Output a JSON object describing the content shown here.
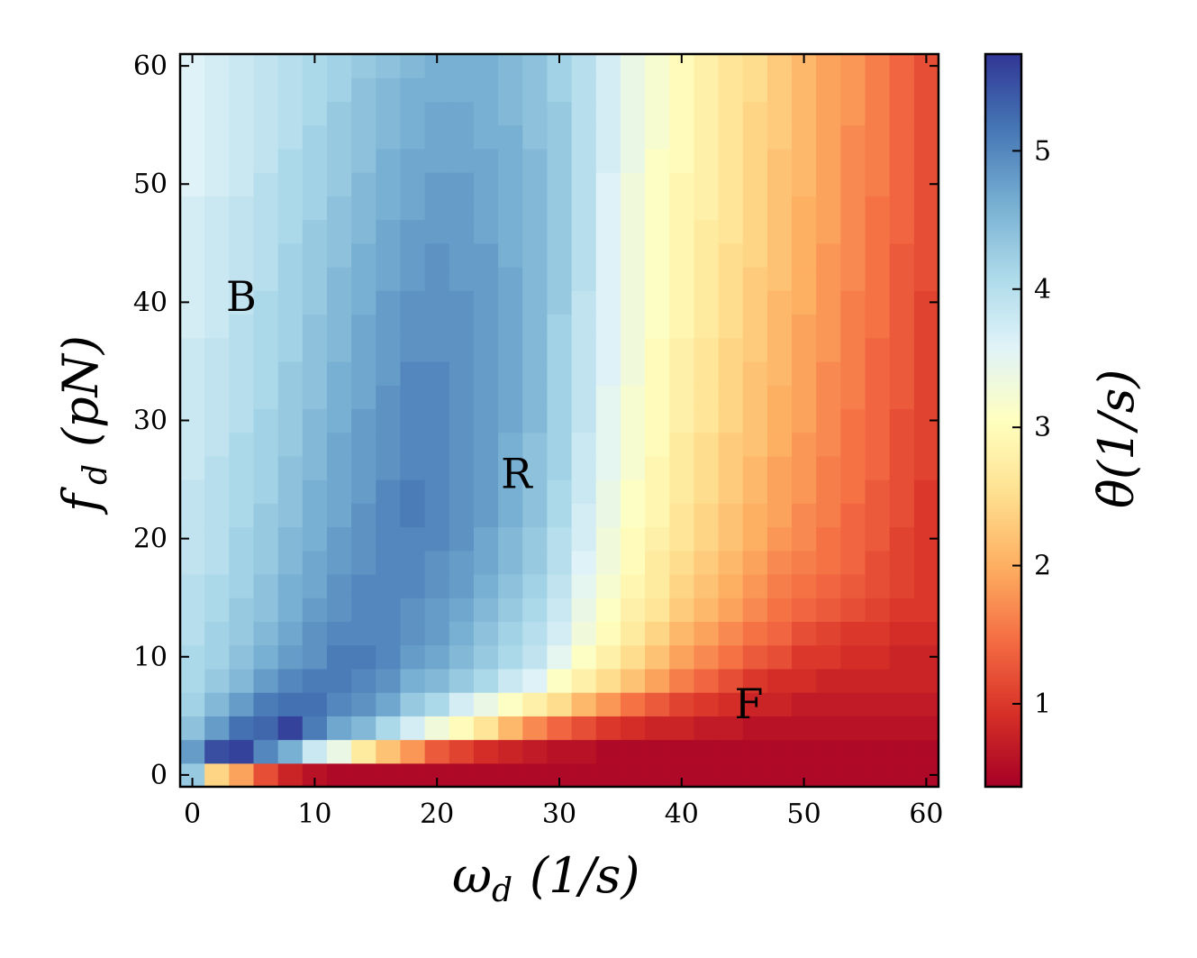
{
  "chart_data": {
    "type": "heatmap",
    "title": "",
    "x": {
      "label_main": "ω",
      "label_sub": "d",
      "label_unit": "(1/s)",
      "range": [
        -1,
        61
      ],
      "ticks": [
        0,
        10,
        20,
        30,
        40,
        50,
        60
      ],
      "tick_labels": [
        "0",
        "10",
        "20",
        "30",
        "40",
        "50",
        "60"
      ],
      "cell_centers": [
        0,
        2,
        4,
        6,
        8,
        10,
        12,
        14,
        16,
        18,
        20,
        22,
        24,
        26,
        28,
        30,
        32,
        34,
        36,
        38,
        40,
        42,
        44,
        46,
        48,
        50,
        52,
        54,
        56,
        58,
        60
      ]
    },
    "y": {
      "label_main": "f",
      "label_sub": "d",
      "label_unit": "(pN)",
      "range": [
        -1,
        61
      ],
      "ticks": [
        0,
        10,
        20,
        30,
        40,
        50,
        60
      ],
      "tick_labels": [
        "0",
        "10",
        "20",
        "30",
        "40",
        "50",
        "60"
      ],
      "cell_centers": [
        0,
        2,
        4,
        6,
        8,
        10,
        12,
        14,
        16,
        18,
        20,
        22,
        24,
        26,
        28,
        30,
        32,
        34,
        36,
        38,
        40,
        42,
        44,
        46,
        48,
        50,
        52,
        54,
        56,
        58,
        60
      ]
    },
    "colorbar": {
      "label": "θ̇ (1/s)",
      "label_main": "θ̇",
      "label_unit": "(1/s)",
      "range": [
        0.4,
        5.7
      ],
      "ticks": [
        1,
        2,
        3,
        4,
        5
      ],
      "tick_labels": [
        "1",
        "2",
        "3",
        "4",
        "5"
      ],
      "colormap": "RdYlBu",
      "low_color": "#a50026",
      "mid_color": "#ffffbf",
      "high_color": "#313695"
    },
    "annotations": [
      {
        "text": "B",
        "x": 4,
        "y": 40.5
      },
      {
        "text": "R",
        "x": 26.5,
        "y": 25.5
      },
      {
        "text": "F",
        "x": 45.5,
        "y": 6
      }
    ],
    "values_rows_note_free": true,
    "values_row_order": "y ascending (row 0 is f_d = 0)",
    "values": [
      [
        4.3,
        2.4,
        1.9,
        1.2,
        0.8,
        0.6,
        0.5,
        0.5,
        0.5,
        0.5,
        0.5,
        0.5,
        0.5,
        0.5,
        0.5,
        0.5,
        0.5,
        0.5,
        0.5,
        0.5,
        0.5,
        0.5,
        0.5,
        0.5,
        0.5,
        0.5,
        0.5,
        0.5,
        0.5,
        0.5,
        0.5
      ],
      [
        4.8,
        5.5,
        5.6,
        5.0,
        4.6,
        3.8,
        3.4,
        2.7,
        2.2,
        1.8,
        1.3,
        1.1,
        0.9,
        0.8,
        0.7,
        0.6,
        0.6,
        0.5,
        0.5,
        0.5,
        0.5,
        0.5,
        0.5,
        0.5,
        0.5,
        0.5,
        0.5,
        0.5,
        0.5,
        0.5,
        0.5
      ],
      [
        4.4,
        4.8,
        5.2,
        5.3,
        5.6,
        5.1,
        4.7,
        4.5,
        4.1,
        3.7,
        3.3,
        3.0,
        2.6,
        2.1,
        1.7,
        1.4,
        1.2,
        1.0,
        0.9,
        0.8,
        0.8,
        0.7,
        0.7,
        0.6,
        0.6,
        0.6,
        0.6,
        0.6,
        0.6,
        0.6,
        0.6
      ],
      [
        4.2,
        4.5,
        4.8,
        5.1,
        5.2,
        5.2,
        5.0,
        4.9,
        4.7,
        4.3,
        4.1,
        3.7,
        3.4,
        3.1,
        2.8,
        2.5,
        2.1,
        1.8,
        1.5,
        1.3,
        1.1,
        1.0,
        0.9,
        0.8,
        0.8,
        0.7,
        0.7,
        0.7,
        0.7,
        0.7,
        0.7
      ],
      [
        4.1,
        4.3,
        4.5,
        4.8,
        5.0,
        5.1,
        5.1,
        5.0,
        4.9,
        4.6,
        4.5,
        4.3,
        4.1,
        3.8,
        3.6,
        3.1,
        2.8,
        2.5,
        2.2,
        1.9,
        1.6,
        1.4,
        1.2,
        1.0,
        0.9,
        0.9,
        0.8,
        0.8,
        0.8,
        0.8,
        0.8
      ],
      [
        4.1,
        4.2,
        4.4,
        4.6,
        4.8,
        4.9,
        5.1,
        5.1,
        5.0,
        4.8,
        4.7,
        4.5,
        4.3,
        4.1,
        3.9,
        3.5,
        3.1,
        2.8,
        2.5,
        2.2,
        1.9,
        1.7,
        1.5,
        1.3,
        1.2,
        1.0,
        1.0,
        0.9,
        0.9,
        0.8,
        0.8
      ],
      [
        4.0,
        4.2,
        4.3,
        4.5,
        4.7,
        4.9,
        5.0,
        5.0,
        5.0,
        4.9,
        4.8,
        4.6,
        4.4,
        4.2,
        4.0,
        3.7,
        3.3,
        3.0,
        2.7,
        2.4,
        2.1,
        1.9,
        1.7,
        1.5,
        1.4,
        1.2,
        1.1,
        1.0,
        1.0,
        0.9,
        0.9
      ],
      [
        4.0,
        4.1,
        4.3,
        4.4,
        4.6,
        4.8,
        4.9,
        5.0,
        5.0,
        4.9,
        4.8,
        4.7,
        4.5,
        4.3,
        4.1,
        3.8,
        3.4,
        3.1,
        2.8,
        2.6,
        2.3,
        2.1,
        1.9,
        1.7,
        1.5,
        1.4,
        1.3,
        1.2,
        1.1,
        1.0,
        1.0
      ],
      [
        4.0,
        4.1,
        4.2,
        4.4,
        4.6,
        4.7,
        4.9,
        5.0,
        5.0,
        5.0,
        4.9,
        4.8,
        4.6,
        4.4,
        4.2,
        3.9,
        3.5,
        3.2,
        2.9,
        2.7,
        2.4,
        2.2,
        2.0,
        1.8,
        1.6,
        1.5,
        1.4,
        1.3,
        1.2,
        1.1,
        1.0
      ],
      [
        3.9,
        4.0,
        4.2,
        4.3,
        4.5,
        4.7,
        4.8,
        4.9,
        5.0,
        5.0,
        4.9,
        4.8,
        4.7,
        4.5,
        4.3,
        4.0,
        3.6,
        3.3,
        3.0,
        2.7,
        2.5,
        2.3,
        2.1,
        1.9,
        1.7,
        1.6,
        1.5,
        1.4,
        1.2,
        1.1,
        1.0
      ],
      [
        3.9,
        4.0,
        4.2,
        4.3,
        4.5,
        4.6,
        4.8,
        4.9,
        5.0,
        5.0,
        5.0,
        4.9,
        4.7,
        4.5,
        4.3,
        4.0,
        3.7,
        3.3,
        3.0,
        2.8,
        2.6,
        2.4,
        2.2,
        2.0,
        1.8,
        1.7,
        1.5,
        1.4,
        1.3,
        1.1,
        1.0
      ],
      [
        3.9,
        4.0,
        4.1,
        4.3,
        4.4,
        4.6,
        4.7,
        4.9,
        5.0,
        5.1,
        5.0,
        4.9,
        4.8,
        4.6,
        4.4,
        4.1,
        3.7,
        3.4,
        3.1,
        2.9,
        2.6,
        2.4,
        2.2,
        2.0,
        1.9,
        1.7,
        1.6,
        1.4,
        1.3,
        1.2,
        1.0
      ],
      [
        3.9,
        4.0,
        4.1,
        4.2,
        4.4,
        4.6,
        4.7,
        4.8,
        5.0,
        5.1,
        5.0,
        4.9,
        4.8,
        4.6,
        4.4,
        4.1,
        3.8,
        3.4,
        3.1,
        2.9,
        2.7,
        2.5,
        2.3,
        2.1,
        1.9,
        1.8,
        1.6,
        1.5,
        1.3,
        1.2,
        1.0
      ],
      [
        3.8,
        4.0,
        4.1,
        4.2,
        4.4,
        4.5,
        4.7,
        4.8,
        4.9,
        5.0,
        5.0,
        4.9,
        4.8,
        4.6,
        4.4,
        4.2,
        3.8,
        3.5,
        3.2,
        2.9,
        2.7,
        2.5,
        2.3,
        2.1,
        1.9,
        1.8,
        1.6,
        1.5,
        1.4,
        1.2,
        1.1
      ],
      [
        3.8,
        3.9,
        4.1,
        4.2,
        4.3,
        4.5,
        4.7,
        4.8,
        4.9,
        5.0,
        5.0,
        4.9,
        4.8,
        4.6,
        4.4,
        4.2,
        3.8,
        3.5,
        3.2,
        3.0,
        2.7,
        2.5,
        2.3,
        2.2,
        2.0,
        1.8,
        1.7,
        1.5,
        1.4,
        1.2,
        1.1
      ],
      [
        3.8,
        3.9,
        4.0,
        4.2,
        4.3,
        4.5,
        4.6,
        4.8,
        4.9,
        5.0,
        5.0,
        4.9,
        4.8,
        4.7,
        4.5,
        4.2,
        3.9,
        3.5,
        3.2,
        3.0,
        2.8,
        2.6,
        2.4,
        2.2,
        2.0,
        1.9,
        1.7,
        1.5,
        1.4,
        1.2,
        1.1
      ],
      [
        3.8,
        3.9,
        4.0,
        4.1,
        4.3,
        4.4,
        4.6,
        4.7,
        4.9,
        5.0,
        5.0,
        4.9,
        4.8,
        4.7,
        4.5,
        4.2,
        3.9,
        3.5,
        3.2,
        3.0,
        2.8,
        2.6,
        2.4,
        2.2,
        2.0,
        1.9,
        1.7,
        1.6,
        1.4,
        1.3,
        1.1
      ],
      [
        3.8,
        3.9,
        4.0,
        4.1,
        4.3,
        4.4,
        4.6,
        4.7,
        4.8,
        5.0,
        5.0,
        4.9,
        4.8,
        4.7,
        4.5,
        4.2,
        3.9,
        3.6,
        3.3,
        3.0,
        2.8,
        2.6,
        2.4,
        2.2,
        2.1,
        1.9,
        1.7,
        1.6,
        1.4,
        1.3,
        1.1
      ],
      [
        3.8,
        3.9,
        4.0,
        4.1,
        4.2,
        4.4,
        4.5,
        4.7,
        4.8,
        4.9,
        4.9,
        4.9,
        4.8,
        4.7,
        4.5,
        4.2,
        3.9,
        3.6,
        3.3,
        3.0,
        2.8,
        2.6,
        2.4,
        2.3,
        2.1,
        1.9,
        1.8,
        1.6,
        1.4,
        1.3,
        1.1
      ],
      [
        3.7,
        3.8,
        4.0,
        4.1,
        4.2,
        4.4,
        4.5,
        4.7,
        4.8,
        4.9,
        4.9,
        4.9,
        4.8,
        4.7,
        4.5,
        4.2,
        3.9,
        3.6,
        3.3,
        3.1,
        2.9,
        2.7,
        2.5,
        2.3,
        2.1,
        1.9,
        1.8,
        1.6,
        1.5,
        1.3,
        1.1
      ],
      [
        3.7,
        3.8,
        3.9,
        4.1,
        4.2,
        4.3,
        4.5,
        4.6,
        4.8,
        4.9,
        4.9,
        4.9,
        4.8,
        4.7,
        4.5,
        4.3,
        3.9,
        3.6,
        3.3,
        3.1,
        2.9,
        2.7,
        2.5,
        2.3,
        2.1,
        2.0,
        1.8,
        1.6,
        1.5,
        1.3,
        1.1
      ],
      [
        3.7,
        3.8,
        3.9,
        4.0,
        4.2,
        4.3,
        4.5,
        4.6,
        4.7,
        4.8,
        4.9,
        4.8,
        4.8,
        4.7,
        4.5,
        4.3,
        4.0,
        3.6,
        3.3,
        3.1,
        2.9,
        2.7,
        2.5,
        2.3,
        2.2,
        2.0,
        1.8,
        1.7,
        1.5,
        1.3,
        1.2
      ],
      [
        3.7,
        3.8,
        3.9,
        4.0,
        4.2,
        4.3,
        4.4,
        4.6,
        4.7,
        4.8,
        4.9,
        4.8,
        4.8,
        4.6,
        4.5,
        4.3,
        4.0,
        3.6,
        3.3,
        3.1,
        2.9,
        2.7,
        2.5,
        2.4,
        2.2,
        2.0,
        1.8,
        1.7,
        1.5,
        1.3,
        1.2
      ],
      [
        3.7,
        3.8,
        3.9,
        4.0,
        4.1,
        4.3,
        4.4,
        4.5,
        4.7,
        4.8,
        4.8,
        4.8,
        4.7,
        4.6,
        4.5,
        4.3,
        4.0,
        3.6,
        3.3,
        3.1,
        2.9,
        2.7,
        2.6,
        2.4,
        2.2,
        2.0,
        1.9,
        1.7,
        1.5,
        1.4,
        1.2
      ],
      [
        3.7,
        3.8,
        3.9,
        4.0,
        4.1,
        4.2,
        4.4,
        4.5,
        4.6,
        4.7,
        4.8,
        4.8,
        4.7,
        4.6,
        4.5,
        4.3,
        4.0,
        3.6,
        3.3,
        3.1,
        2.9,
        2.8,
        2.6,
        2.4,
        2.2,
        2.0,
        1.9,
        1.7,
        1.5,
        1.4,
        1.2
      ],
      [
        3.6,
        3.7,
        3.8,
        4.0,
        4.1,
        4.2,
        4.3,
        4.5,
        4.6,
        4.7,
        4.8,
        4.8,
        4.7,
        4.6,
        4.5,
        4.3,
        4.0,
        3.6,
        3.3,
        3.1,
        2.9,
        2.8,
        2.6,
        2.4,
        2.2,
        2.1,
        1.9,
        1.7,
        1.6,
        1.4,
        1.2
      ],
      [
        3.6,
        3.7,
        3.8,
        3.9,
        4.1,
        4.2,
        4.3,
        4.4,
        4.6,
        4.7,
        4.7,
        4.7,
        4.7,
        4.6,
        4.5,
        4.3,
        4.0,
        3.7,
        3.4,
        3.1,
        3.0,
        2.8,
        2.6,
        2.4,
        2.2,
        2.1,
        1.9,
        1.7,
        1.6,
        1.4,
        1.2
      ],
      [
        3.6,
        3.7,
        3.8,
        3.9,
        4.0,
        4.2,
        4.3,
        4.4,
        4.5,
        4.6,
        4.7,
        4.7,
        4.6,
        4.6,
        4.4,
        4.3,
        4.0,
        3.7,
        3.4,
        3.2,
        3.0,
        2.8,
        2.6,
        2.4,
        2.3,
        2.1,
        1.9,
        1.7,
        1.6,
        1.4,
        1.2
      ],
      [
        3.6,
        3.7,
        3.8,
        3.9,
        4.0,
        4.1,
        4.3,
        4.4,
        4.5,
        4.6,
        4.7,
        4.7,
        4.6,
        4.5,
        4.4,
        4.3,
        4.0,
        3.7,
        3.4,
        3.2,
        3.0,
        2.8,
        2.6,
        2.4,
        2.3,
        2.1,
        1.9,
        1.8,
        1.6,
        1.4,
        1.2
      ],
      [
        3.6,
        3.7,
        3.8,
        3.9,
        4.0,
        4.1,
        4.2,
        4.4,
        4.5,
        4.6,
        4.6,
        4.6,
        4.6,
        4.5,
        4.4,
        4.2,
        4.0,
        3.7,
        3.4,
        3.2,
        3.0,
        2.8,
        2.6,
        2.5,
        2.3,
        2.1,
        1.9,
        1.8,
        1.6,
        1.4,
        1.2
      ],
      [
        3.6,
        3.7,
        3.8,
        3.9,
        4.0,
        4.1,
        4.2,
        4.3,
        4.4,
        4.5,
        4.6,
        4.6,
        4.6,
        4.5,
        4.4,
        4.2,
        4.0,
        3.7,
        3.4,
        3.2,
        3.0,
        2.8,
        2.6,
        2.5,
        2.3,
        2.1,
        1.9,
        1.8,
        1.6,
        1.4,
        1.2
      ]
    ]
  }
}
